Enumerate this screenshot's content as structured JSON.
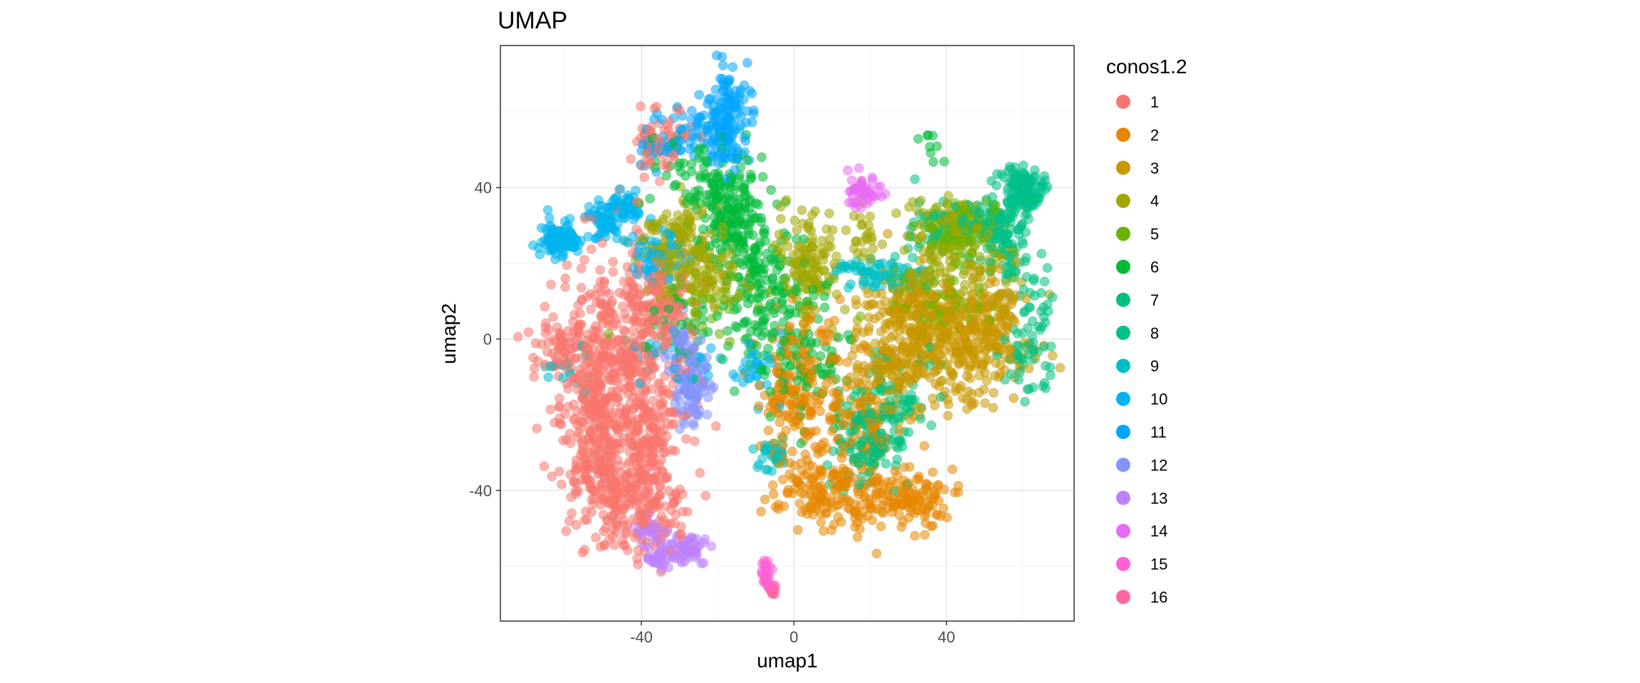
{
  "chart_data": {
    "type": "scatter",
    "title": "UMAP",
    "xlabel": "umap1",
    "ylabel": "umap2",
    "xlim": [
      -77,
      73.5
    ],
    "ylim": [
      -74.5,
      77.5
    ],
    "xticks": [
      -40,
      0,
      40
    ],
    "xtick_labels": [
      "-40",
      "0",
      "40"
    ],
    "yticks": [
      -40,
      0,
      40
    ],
    "ytick_labels": [
      "-40",
      "0",
      "40"
    ],
    "grid": true,
    "legend": {
      "title": "conos1.2",
      "position": "right"
    },
    "series": [
      {
        "name": "1",
        "color": "#F8766D",
        "n": 1200,
        "blobs": [
          [
            -44,
            -4,
            8,
            14,
            1
          ],
          [
            -52,
            -18,
            5,
            10,
            0.6
          ],
          [
            -48,
            -38,
            6,
            8,
            0.5
          ],
          [
            -38,
            -30,
            4,
            10,
            0.4
          ],
          [
            -62,
            -2,
            3,
            3,
            0.12
          ],
          [
            -36,
            8,
            4,
            5,
            0.2
          ],
          [
            -36,
            -48,
            5,
            5,
            0.2
          ],
          [
            -35,
            52,
            4,
            5,
            0.15
          ]
        ]
      },
      {
        "name": "2",
        "color": "#E58700",
        "n": 560,
        "blobs": [
          [
            8,
            -40,
            7,
            5,
            1
          ],
          [
            30,
            -42,
            6,
            4,
            0.8
          ],
          [
            3,
            -10,
            6,
            10,
            0.9
          ],
          [
            17,
            -22,
            5,
            8,
            0.5
          ],
          [
            -3,
            -18,
            3,
            6,
            0.3
          ]
        ]
      },
      {
        "name": "3",
        "color": "#C99800",
        "n": 650,
        "blobs": [
          [
            42,
            -3,
            9,
            7,
            1
          ],
          [
            33,
            8,
            8,
            6,
            0.8
          ],
          [
            24,
            -10,
            6,
            6,
            0.4
          ],
          [
            53,
            5,
            4,
            6,
            0.3
          ]
        ]
      },
      {
        "name": "4",
        "color": "#A3A500",
        "n": 560,
        "blobs": [
          [
            -26,
            20,
            6,
            6,
            1
          ],
          [
            -32,
            28,
            4,
            4,
            0.4
          ],
          [
            4,
            18,
            4,
            8,
            0.8
          ],
          [
            42,
            20,
            8,
            8,
            0.8
          ],
          [
            44,
            30,
            6,
            4,
            0.4
          ],
          [
            18,
            27,
            2,
            6,
            0.15
          ]
        ]
      },
      {
        "name": "5",
        "color": "#6BB100",
        "n": 200,
        "blobs": [
          [
            44,
            28,
            6,
            4,
            1
          ],
          [
            38,
            12,
            8,
            5,
            0.7
          ],
          [
            -26,
            12,
            8,
            6,
            0.3
          ]
        ]
      },
      {
        "name": "6",
        "color": "#00BA38",
        "n": 520,
        "blobs": [
          [
            -18,
            38,
            5,
            7,
            1
          ],
          [
            -14,
            26,
            4,
            5,
            0.5
          ],
          [
            -8,
            10,
            4,
            10,
            0.8
          ],
          [
            2,
            -4,
            6,
            10,
            0.7
          ],
          [
            -28,
            4,
            6,
            6,
            0.3
          ],
          [
            35,
            51,
            2,
            3,
            0.06
          ],
          [
            -32,
            46,
            4,
            4,
            0.2
          ]
        ]
      },
      {
        "name": "7",
        "color": "#00BF7D",
        "n": 300,
        "blobs": [
          [
            20,
            -26,
            5,
            6,
            1
          ],
          [
            28,
            -14,
            5,
            5,
            0.4
          ],
          [
            62,
            0,
            3,
            8,
            0.5
          ],
          [
            58,
            20,
            3,
            4,
            0.2
          ],
          [
            52,
            32,
            4,
            3,
            0.25
          ]
        ]
      },
      {
        "name": "8",
        "color": "#00C08B",
        "n": 250,
        "blobs": [
          [
            60,
            40,
            3,
            3,
            1
          ],
          [
            54,
            28,
            4,
            4,
            0.6
          ],
          [
            38,
            30,
            6,
            4,
            0.4
          ]
        ]
      },
      {
        "name": "9",
        "color": "#00BFC4",
        "n": 120,
        "blobs": [
          [
            22,
            17,
            6,
            2,
            1
          ],
          [
            -6,
            -31,
            2,
            2,
            0.4
          ],
          [
            -58,
            -7,
            4,
            3,
            0.2
          ]
        ]
      },
      {
        "name": "10",
        "color": "#00B4EF",
        "n": 330,
        "blobs": [
          [
            -61,
            26,
            3,
            2,
            1
          ],
          [
            -50,
            31,
            3,
            3,
            0.7
          ],
          [
            -45,
            35,
            2,
            2,
            0.5
          ],
          [
            -36,
            22,
            4,
            4,
            0.6
          ],
          [
            -30,
            -6,
            6,
            4,
            0.3
          ],
          [
            -10,
            -8,
            4,
            4,
            0.3
          ]
        ]
      },
      {
        "name": "11",
        "color": "#00A5FF",
        "n": 200,
        "blobs": [
          [
            -17,
            62,
            3,
            5,
            1
          ],
          [
            -18,
            52,
            3,
            5,
            0.8
          ],
          [
            -28,
            55,
            5,
            4,
            0.5
          ],
          [
            -36,
            50,
            3,
            2,
            0.3
          ]
        ]
      },
      {
        "name": "12",
        "color": "#8494FF",
        "n": 120,
        "blobs": [
          [
            -27,
            -16,
            2,
            4,
            1
          ],
          [
            -29,
            -2,
            2,
            4,
            0.7
          ],
          [
            -25,
            -8,
            2,
            4,
            0.5
          ]
        ]
      },
      {
        "name": "13",
        "color": "#BB81FF",
        "n": 100,
        "blobs": [
          [
            -34,
            -57,
            3,
            2,
            1
          ],
          [
            -27,
            -55,
            2,
            2,
            0.8
          ],
          [
            -38,
            -51,
            3,
            2,
            0.5
          ]
        ]
      },
      {
        "name": "14",
        "color": "#E76BF3",
        "n": 50,
        "blobs": [
          [
            18,
            39,
            2,
            2,
            1
          ]
        ]
      },
      {
        "name": "15",
        "color": "#FC61D5",
        "n": 25,
        "blobs": [
          [
            -7,
            -63,
            1,
            2,
            1
          ]
        ]
      },
      {
        "name": "16",
        "color": "#FF67A4",
        "n": 18,
        "blobs": [
          [
            -6,
            -66,
            1,
            1,
            1
          ]
        ]
      }
    ]
  }
}
